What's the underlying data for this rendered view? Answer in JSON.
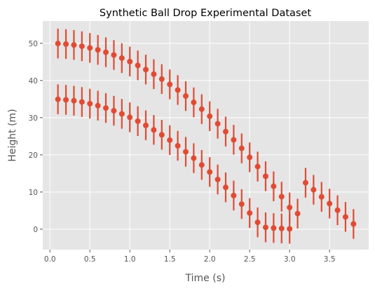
{
  "chart_data": {
    "type": "scatter",
    "title": "Synthetic Ball Drop Experimental Dataset",
    "xlabel": "Time (s)",
    "ylabel": "Height (m)",
    "xlim": [
      -0.09,
      3.99
    ],
    "ylim": [
      -5.5,
      56
    ],
    "xticks": [
      0.0,
      0.5,
      1.0,
      1.5,
      2.0,
      2.5,
      3.0,
      3.5
    ],
    "xtick_labels": [
      "0.0",
      "0.5",
      "1.0",
      "1.5",
      "2.0",
      "2.5",
      "3.0",
      "3.5"
    ],
    "yticks": [
      0,
      10,
      20,
      30,
      40,
      50
    ],
    "ytick_labels": [
      "0",
      "10",
      "20",
      "30",
      "40",
      "50"
    ],
    "grid": true,
    "error_bar": 4,
    "colors": {
      "marker": "#E24A33",
      "plot_bg": "#E5E5E5",
      "grid": "#FFFFFF",
      "text": "#555555"
    },
    "series": [
      {
        "x": [
          0.1,
          0.2,
          0.3,
          0.4,
          0.5,
          0.6,
          0.7,
          0.8,
          0.9,
          1.0,
          1.1,
          1.2,
          1.3,
          1.4,
          1.5,
          1.6,
          1.7,
          1.8,
          1.9,
          2.0,
          2.1,
          2.2,
          2.3,
          2.4,
          2.5,
          2.6,
          2.7,
          2.8,
          2.9,
          3.0,
          3.1,
          3.2,
          3.3,
          3.4,
          3.5,
          3.6,
          3.7,
          3.8
        ],
        "y": [
          49.95,
          49.8,
          49.56,
          49.22,
          48.77,
          48.24,
          47.6,
          46.86,
          46.03,
          45.1,
          44.07,
          42.94,
          41.71,
          40.39,
          38.96,
          37.44,
          35.82,
          34.11,
          32.29,
          30.38,
          28.37,
          26.26,
          24.05,
          21.75,
          19.34,
          16.84,
          14.24,
          11.54,
          8.75,
          5.85,
          4.2,
          12.5,
          10.6,
          8.7,
          6.9,
          5.1,
          3.3,
          1.4
        ],
        "yerr": 4
      },
      {
        "x": [
          0.1,
          0.2,
          0.3,
          0.4,
          0.5,
          0.6,
          0.7,
          0.8,
          0.9,
          1.0,
          1.1,
          1.2,
          1.3,
          1.4,
          1.5,
          1.6,
          1.7,
          1.8,
          1.9,
          2.0,
          2.1,
          2.2,
          2.3,
          2.4,
          2.5,
          2.6,
          2.7,
          2.8,
          2.9,
          3.0
        ],
        "y": [
          34.95,
          34.8,
          34.56,
          34.22,
          33.77,
          33.24,
          32.6,
          31.86,
          31.03,
          30.1,
          29.07,
          27.94,
          26.71,
          25.39,
          23.96,
          22.44,
          20.82,
          19.11,
          17.29,
          15.38,
          13.37,
          11.26,
          9.05,
          6.75,
          4.34,
          1.84,
          0.5,
          0.3,
          0.2,
          0.1
        ],
        "yerr": 4
      }
    ]
  }
}
